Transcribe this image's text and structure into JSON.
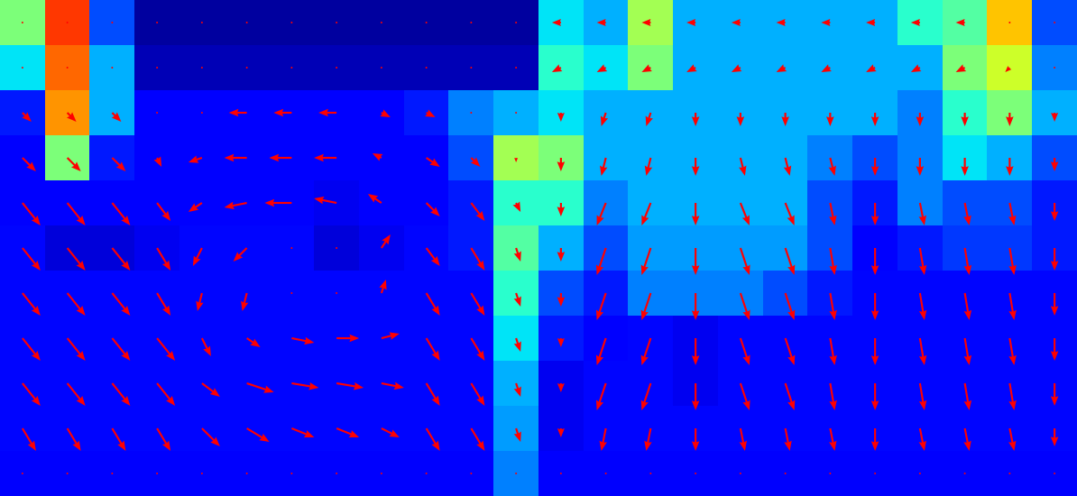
{
  "chart_data": {
    "type": "heatmap",
    "tick_labels": false,
    "zlim": [
      0,
      1
    ],
    "cells": [
      [
        0.5,
        0.85,
        0.2,
        0.03,
        0.03,
        0.03,
        0.03,
        0.03,
        0.03,
        0.03,
        0.03,
        0.03,
        0.35,
        0.3,
        0.55,
        0.3,
        0.3,
        0.3,
        0.3,
        0.3,
        0.4,
        0.45,
        0.7,
        0.2
      ],
      [
        0.35,
        0.8,
        0.3,
        0.05,
        0.05,
        0.05,
        0.05,
        0.05,
        0.05,
        0.05,
        0.05,
        0.05,
        0.4,
        0.35,
        0.5,
        0.3,
        0.3,
        0.3,
        0.3,
        0.3,
        0.3,
        0.5,
        0.6,
        0.25
      ],
      [
        0.15,
        0.75,
        0.3,
        0.12,
        0.12,
        0.12,
        0.12,
        0.12,
        0.12,
        0.15,
        0.25,
        0.3,
        0.35,
        0.3,
        0.3,
        0.3,
        0.3,
        0.3,
        0.3,
        0.3,
        0.25,
        0.4,
        0.5,
        0.3
      ],
      [
        0.12,
        0.5,
        0.15,
        0.12,
        0.12,
        0.12,
        0.12,
        0.12,
        0.12,
        0.12,
        0.2,
        0.55,
        0.5,
        0.3,
        0.3,
        0.3,
        0.3,
        0.3,
        0.25,
        0.2,
        0.25,
        0.35,
        0.3,
        0.2
      ],
      [
        0.12,
        0.12,
        0.12,
        0.12,
        0.12,
        0.12,
        0.12,
        0.1,
        0.12,
        0.12,
        0.15,
        0.4,
        0.4,
        0.25,
        0.3,
        0.3,
        0.3,
        0.3,
        0.2,
        0.15,
        0.25,
        0.2,
        0.2,
        0.15
      ],
      [
        0.13,
        0.08,
        0.08,
        0.1,
        0.13,
        0.13,
        0.13,
        0.08,
        0.1,
        0.13,
        0.15,
        0.45,
        0.3,
        0.2,
        0.28,
        0.28,
        0.28,
        0.28,
        0.2,
        0.12,
        0.15,
        0.18,
        0.18,
        0.15
      ],
      [
        0.13,
        0.13,
        0.13,
        0.13,
        0.13,
        0.13,
        0.13,
        0.13,
        0.13,
        0.13,
        0.13,
        0.4,
        0.2,
        0.15,
        0.25,
        0.25,
        0.25,
        0.2,
        0.15,
        0.13,
        0.13,
        0.13,
        0.13,
        0.13
      ],
      [
        0.13,
        0.13,
        0.13,
        0.13,
        0.13,
        0.13,
        0.13,
        0.13,
        0.13,
        0.13,
        0.13,
        0.35,
        0.15,
        0.12,
        0.13,
        0.1,
        0.13,
        0.13,
        0.13,
        0.13,
        0.13,
        0.13,
        0.13,
        0.13
      ],
      [
        0.13,
        0.13,
        0.13,
        0.13,
        0.13,
        0.13,
        0.13,
        0.13,
        0.13,
        0.13,
        0.13,
        0.3,
        0.1,
        0.13,
        0.13,
        0.1,
        0.13,
        0.13,
        0.13,
        0.13,
        0.13,
        0.13,
        0.13,
        0.13
      ],
      [
        0.13,
        0.13,
        0.13,
        0.13,
        0.13,
        0.13,
        0.13,
        0.13,
        0.13,
        0.13,
        0.13,
        0.28,
        0.1,
        0.13,
        0.13,
        0.13,
        0.13,
        0.13,
        0.13,
        0.13,
        0.13,
        0.13,
        0.13,
        0.13
      ],
      [
        0.11,
        0.11,
        0.11,
        0.11,
        0.11,
        0.11,
        0.11,
        0.11,
        0.11,
        0.11,
        0.11,
        0.25,
        0.11,
        0.11,
        0.11,
        0.11,
        0.11,
        0.11,
        0.11,
        0.11,
        0.11,
        0.11,
        0.11,
        0.11
      ]
    ],
    "series": [
      {
        "type": "quiver",
        "color": "#ff0000",
        "u": [
          [
            0,
            0,
            0,
            0,
            0,
            0,
            0,
            0,
            0,
            0,
            0,
            0,
            -0.2,
            -0.2,
            -0.2,
            -0.2,
            -0.2,
            -0.2,
            -0.2,
            -0.2,
            -0.2,
            -0.2,
            0,
            0
          ],
          [
            0,
            0,
            0,
            0,
            0,
            0,
            0,
            0,
            0,
            0,
            0,
            0,
            -0.2,
            -0.2,
            -0.2,
            -0.2,
            -0.2,
            -0.2,
            -0.2,
            -0.2,
            -0.2,
            -0.2,
            -0.1,
            0
          ],
          [
            0.2,
            0.2,
            0.2,
            0,
            0,
            -0.4,
            -0.4,
            -0.4,
            0.2,
            0.2,
            0,
            0,
            0,
            -0.1,
            -0.1,
            0,
            0,
            0,
            0,
            0,
            0,
            0,
            0,
            0
          ],
          [
            0.3,
            0.3,
            0.3,
            0.1,
            -0.3,
            -0.5,
            -0.5,
            -0.5,
            -0.2,
            0.3,
            0.2,
            0,
            0,
            -0.1,
            -0.1,
            0,
            0.1,
            0.1,
            0.1,
            0,
            0,
            0,
            0,
            0
          ],
          [
            0.4,
            0.4,
            0.4,
            0.3,
            -0.3,
            -0.5,
            -0.6,
            -0.5,
            -0.3,
            0.3,
            0.3,
            0.1,
            0,
            -0.2,
            -0.2,
            0,
            0.2,
            0.2,
            0.1,
            0,
            0.1,
            0.1,
            0.1,
            0
          ],
          [
            0.4,
            0.4,
            0.4,
            0.3,
            -0.2,
            -0.3,
            0,
            0,
            0.2,
            0.3,
            0.3,
            0.1,
            0,
            -0.2,
            -0.2,
            0,
            0.2,
            0.2,
            0.1,
            0,
            0.1,
            0.1,
            0.1,
            0
          ],
          [
            0.4,
            0.4,
            0.4,
            0.3,
            -0.1,
            -0.1,
            0,
            0,
            0.1,
            0.3,
            0.3,
            0.1,
            0,
            -0.2,
            -0.2,
            0,
            0.2,
            0.2,
            0.1,
            0,
            0.1,
            0.1,
            0.1,
            0
          ],
          [
            0.4,
            0.4,
            0.4,
            0.4,
            0.2,
            0.3,
            0.5,
            0.5,
            0.4,
            0.3,
            0.3,
            0.1,
            0,
            -0.2,
            -0.2,
            0,
            0.2,
            0.2,
            0.1,
            0,
            0.1,
            0.1,
            0.1,
            0
          ],
          [
            0.4,
            0.4,
            0.4,
            0.4,
            0.4,
            0.6,
            0.6,
            0.6,
            0.5,
            0.3,
            0.3,
            0.1,
            0,
            -0.2,
            -0.2,
            0,
            0.2,
            0.2,
            0.1,
            0,
            0.1,
            0.1,
            0.1,
            0
          ],
          [
            0.3,
            0.3,
            0.3,
            0.3,
            0.4,
            0.5,
            0.5,
            0.5,
            0.4,
            0.3,
            0.3,
            0.1,
            0,
            -0.1,
            -0.1,
            0,
            0.1,
            0.1,
            0.1,
            0,
            0.1,
            0.1,
            0.1,
            0
          ],
          [
            0,
            0,
            0,
            0,
            0,
            0,
            0,
            0,
            0,
            0,
            0,
            0,
            0,
            0,
            0,
            0,
            0,
            0,
            0,
            0,
            0,
            0,
            0,
            0
          ]
        ],
        "v": [
          [
            0,
            0,
            0,
            0,
            0,
            0,
            0,
            0,
            0,
            0,
            0,
            0,
            0,
            0,
            0,
            0,
            0,
            0,
            0,
            0,
            0,
            0,
            0,
            0
          ],
          [
            0,
            0,
            0,
            0,
            0,
            0,
            0,
            0,
            0,
            0,
            0,
            0,
            -0.1,
            -0.1,
            -0.1,
            -0.1,
            -0.1,
            -0.1,
            -0.1,
            -0.1,
            -0.1,
            -0.1,
            -0.1,
            0
          ],
          [
            -0.2,
            -0.2,
            -0.2,
            0,
            0,
            0,
            0,
            0,
            -0.1,
            -0.1,
            0,
            0,
            -0.2,
            -0.3,
            -0.3,
            -0.3,
            -0.3,
            -0.3,
            -0.3,
            -0.3,
            -0.3,
            -0.3,
            -0.3,
            -0.2
          ],
          [
            -0.3,
            -0.3,
            -0.3,
            -0.2,
            -0.1,
            0,
            0,
            0,
            0.1,
            -0.2,
            -0.2,
            -0.1,
            -0.3,
            -0.4,
            -0.4,
            -0.4,
            -0.4,
            -0.4,
            -0.4,
            -0.4,
            -0.4,
            -0.4,
            -0.4,
            -0.3
          ],
          [
            -0.5,
            -0.5,
            -0.5,
            -0.4,
            -0.2,
            -0.1,
            0,
            0.1,
            0.2,
            -0.3,
            -0.4,
            -0.2,
            -0.3,
            -0.5,
            -0.5,
            -0.5,
            -0.5,
            -0.5,
            -0.5,
            -0.5,
            -0.5,
            -0.5,
            -0.5,
            -0.4
          ],
          [
            -0.5,
            -0.5,
            -0.5,
            -0.5,
            -0.4,
            -0.3,
            0,
            0,
            0.3,
            -0.4,
            -0.5,
            -0.3,
            -0.3,
            -0.6,
            -0.6,
            -0.6,
            -0.6,
            -0.6,
            -0.6,
            -0.6,
            -0.6,
            -0.6,
            -0.6,
            -0.5
          ],
          [
            -0.5,
            -0.5,
            -0.5,
            -0.5,
            -0.4,
            -0.4,
            0,
            0,
            0.3,
            -0.5,
            -0.5,
            -0.3,
            -0.3,
            -0.6,
            -0.6,
            -0.6,
            -0.6,
            -0.6,
            -0.6,
            -0.6,
            -0.6,
            -0.6,
            -0.6,
            -0.5
          ],
          [
            -0.5,
            -0.5,
            -0.5,
            -0.5,
            -0.4,
            -0.2,
            -0.1,
            0,
            0.1,
            -0.5,
            -0.5,
            -0.3,
            -0.2,
            -0.6,
            -0.6,
            -0.6,
            -0.6,
            -0.6,
            -0.6,
            -0.6,
            -0.6,
            -0.6,
            -0.6,
            -0.5
          ],
          [
            -0.5,
            -0.5,
            -0.5,
            -0.5,
            -0.3,
            -0.2,
            -0.1,
            -0.1,
            -0.1,
            -0.5,
            -0.5,
            -0.3,
            -0.2,
            -0.6,
            -0.6,
            -0.6,
            -0.6,
            -0.6,
            -0.6,
            -0.6,
            -0.6,
            -0.6,
            -0.6,
            -0.5
          ],
          [
            -0.5,
            -0.5,
            -0.5,
            -0.5,
            -0.4,
            -0.3,
            -0.2,
            -0.2,
            -0.2,
            -0.5,
            -0.5,
            -0.3,
            -0.2,
            -0.5,
            -0.5,
            -0.5,
            -0.5,
            -0.5,
            -0.5,
            -0.5,
            -0.5,
            -0.5,
            -0.5,
            -0.4
          ],
          [
            0,
            0,
            0,
            0,
            0,
            0,
            0,
            0,
            0,
            0,
            0,
            0,
            0,
            0,
            0,
            0,
            0,
            0,
            0,
            0,
            0,
            0,
            0,
            0
          ]
        ]
      }
    ]
  }
}
